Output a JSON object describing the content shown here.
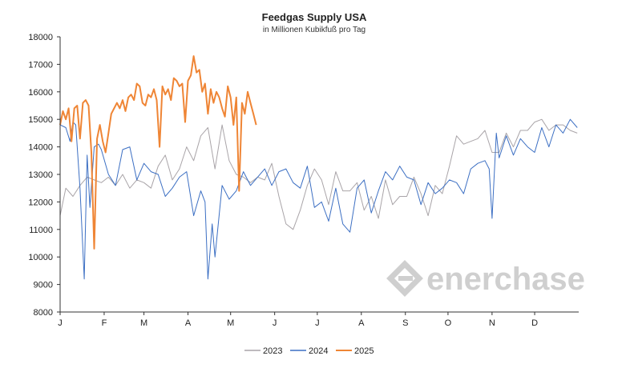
{
  "chart_data": {
    "type": "line",
    "title": "Feedgas Supply USA",
    "subtitle": "in Millionen Kubikfuß pro Tag",
    "xlabel": "",
    "ylabel": "",
    "ylim": [
      8000,
      18000
    ],
    "yticks": [
      8000,
      9000,
      10000,
      11000,
      12000,
      13000,
      14000,
      15000,
      16000,
      17000,
      18000
    ],
    "ytick_labels": [
      "8000",
      "9000",
      "10000",
      "11000",
      "12000",
      "13000",
      "14000",
      "15000",
      "16000",
      "17000",
      "18000"
    ],
    "x_unit": "day of year",
    "xlim": [
      1,
      366
    ],
    "xtick_labels": [
      "J",
      "F",
      "M",
      "A",
      "M",
      "J",
      "J",
      "A",
      "S",
      "O",
      "N",
      "D"
    ],
    "xtick_days": [
      1,
      32,
      60,
      91,
      121,
      152,
      182,
      213,
      244,
      274,
      305,
      335
    ],
    "legend_position": "bottom",
    "grid": false,
    "series": [
      {
        "name": "2023",
        "color": "#a9a4a8",
        "x": [
          1,
          5,
          10,
          15,
          20,
          25,
          30,
          35,
          40,
          45,
          50,
          55,
          60,
          65,
          70,
          75,
          80,
          85,
          90,
          95,
          100,
          105,
          110,
          115,
          120,
          125,
          130,
          135,
          140,
          145,
          150,
          155,
          160,
          165,
          170,
          175,
          180,
          185,
          190,
          195,
          200,
          205,
          210,
          215,
          220,
          225,
          230,
          235,
          240,
          245,
          250,
          255,
          260,
          265,
          270,
          275,
          280,
          285,
          290,
          295,
          300,
          305,
          310,
          315,
          320,
          325,
          330,
          335,
          340,
          345,
          350,
          355,
          360,
          365
        ],
        "y": [
          11500,
          12500,
          12200,
          12600,
          12900,
          12800,
          12700,
          12900,
          12600,
          13000,
          12500,
          12800,
          12700,
          12500,
          13300,
          13700,
          12800,
          13200,
          14000,
          13500,
          14400,
          14700,
          13200,
          14800,
          13500,
          13000,
          12900,
          12700,
          12900,
          12800,
          13400,
          12200,
          11200,
          11000,
          11700,
          12600,
          13200,
          12800,
          11900,
          13100,
          12400,
          12400,
          12700,
          11700,
          12200,
          11400,
          12800,
          11900,
          12200,
          12200,
          12900,
          12300,
          11500,
          12600,
          12300,
          13300,
          14400,
          14100,
          14200,
          14300,
          14600,
          13800,
          13800,
          14500,
          14000,
          14600,
          14600,
          14900,
          15000,
          14600,
          14800,
          14800,
          14600,
          14500
        ]
      },
      {
        "name": "2024",
        "color": "#3c6fc3",
        "x": [
          1,
          5,
          8,
          10,
          12,
          15,
          18,
          20,
          22,
          25,
          28,
          30,
          35,
          40,
          45,
          50,
          55,
          60,
          65,
          70,
          75,
          80,
          85,
          90,
          95,
          100,
          103,
          105,
          108,
          110,
          115,
          120,
          125,
          130,
          135,
          140,
          145,
          150,
          155,
          160,
          165,
          170,
          175,
          180,
          185,
          190,
          195,
          200,
          205,
          210,
          215,
          220,
          225,
          230,
          235,
          240,
          245,
          250,
          255,
          260,
          265,
          270,
          275,
          280,
          285,
          290,
          295,
          300,
          303,
          305,
          308,
          310,
          315,
          320,
          325,
          330,
          335,
          340,
          345,
          350,
          355,
          360,
          365
        ],
        "y": [
          14800,
          14700,
          14200,
          14900,
          14800,
          12500,
          9200,
          13700,
          11800,
          14000,
          14100,
          13900,
          13000,
          12600,
          13900,
          14000,
          12800,
          13400,
          13100,
          13000,
          12200,
          12500,
          12900,
          13100,
          11500,
          12400,
          12000,
          9200,
          11200,
          10000,
          12600,
          12100,
          12400,
          13100,
          12600,
          12900,
          13200,
          12600,
          13100,
          13200,
          12700,
          12500,
          13300,
          11800,
          12000,
          11300,
          12500,
          11200,
          10900,
          12500,
          12800,
          11600,
          12400,
          13100,
          12800,
          13300,
          12900,
          12800,
          11900,
          12700,
          12300,
          12500,
          12800,
          12700,
          12300,
          13200,
          13400,
          13500,
          13200,
          11400,
          14500,
          13600,
          14400,
          13700,
          14300,
          14000,
          13800,
          14700,
          14000,
          14800,
          14500,
          15000,
          14700
        ]
      },
      {
        "name": "2025",
        "color": "#ef8535",
        "x": [
          1,
          3,
          5,
          7,
          9,
          11,
          13,
          15,
          17,
          19,
          21,
          23,
          25,
          27,
          29,
          31,
          33,
          35,
          37,
          39,
          41,
          43,
          45,
          47,
          49,
          51,
          53,
          55,
          57,
          59,
          61,
          63,
          65,
          67,
          69,
          71,
          73,
          75,
          77,
          79,
          81,
          83,
          85,
          87,
          89,
          91,
          93,
          95,
          97,
          99,
          101,
          103,
          105,
          107,
          109,
          111,
          113,
          115,
          117,
          119,
          121,
          123,
          125,
          127,
          129,
          131,
          133,
          135,
          137,
          139
        ],
        "y": [
          14800,
          15300,
          15000,
          15400,
          14200,
          15400,
          15500,
          14300,
          15600,
          15700,
          15500,
          13800,
          10300,
          14300,
          14800,
          14200,
          13800,
          14500,
          15200,
          15400,
          15600,
          15400,
          15700,
          15300,
          15800,
          15900,
          15700,
          16300,
          16200,
          15600,
          15500,
          15900,
          15800,
          16100,
          15700,
          14000,
          16200,
          15900,
          16100,
          15700,
          16500,
          16400,
          16200,
          16300,
          14900,
          16400,
          16600,
          17300,
          16700,
          16800,
          16000,
          16300,
          15200,
          16100,
          15600,
          16000,
          15800,
          15400,
          15100,
          16200,
          15800,
          14800,
          15800,
          12400,
          15600,
          15200,
          16000,
          15600,
          15200,
          14800
        ]
      }
    ],
    "watermark": "enerchase"
  }
}
